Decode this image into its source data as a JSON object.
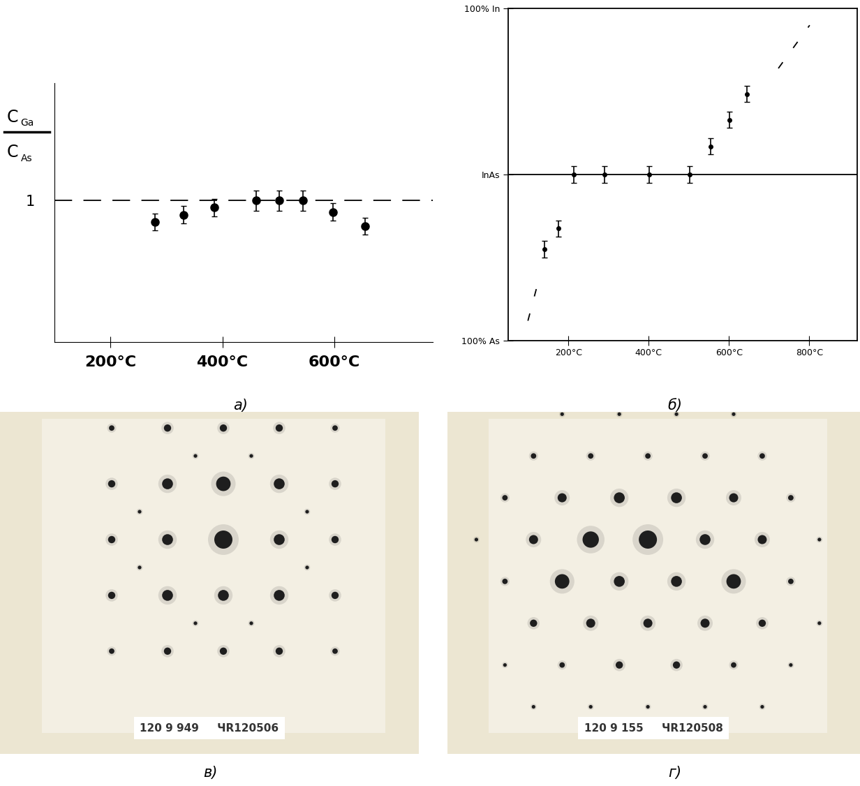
{
  "chart_data": [
    {
      "type": "scatter",
      "caption": "а)",
      "ylabel_numerator": "CGa",
      "ylabel_denominator": "CAs",
      "x": [
        280,
        331,
        386,
        460,
        502,
        544,
        597,
        654
      ],
      "values": [
        0.85,
        0.9,
        0.95,
        1.0,
        1.0,
        1.0,
        0.92,
        0.82
      ],
      "errors": [
        0.06,
        0.06,
        0.06,
        0.07,
        0.07,
        0.07,
        0.06,
        0.06
      ],
      "reference_line": 1,
      "reference_line_style": "dashed",
      "xlim": [
        100,
        775
      ],
      "ylim": [
        0,
        1.83
      ],
      "xticks": [
        {
          "value": 200,
          "label": "200°C"
        },
        {
          "value": 400,
          "label": "400°C"
        },
        {
          "value": 600,
          "label": "600°C"
        }
      ],
      "yticks": [
        1
      ],
      "color": "#000000",
      "marker": "o"
    },
    {
      "type": "scatter",
      "caption": "б)",
      "x": [
        140,
        175,
        213,
        290,
        401,
        502,
        554,
        601,
        645
      ],
      "values": [
        27.4,
        33.7,
        50,
        50,
        50,
        50,
        58.5,
        66.5,
        74.3
      ],
      "errors": [
        2.5,
        2.5,
        2.5,
        2.5,
        2.5,
        2.5,
        2.5,
        2.5,
        2.5
      ],
      "reference_line": 50,
      "reference_line_style": "solid",
      "trend_lines": [
        {
          "x": [
            99,
            128
          ],
          "values": [
            5.9,
            19.2
          ]
        },
        {
          "x": [
            723,
            801
          ],
          "values": [
            82,
            95
          ]
        }
      ],
      "line_style": "dashed",
      "xlim": [
        50,
        920
      ],
      "ylim": [
        0,
        100
      ],
      "xticks": [
        {
          "value": 200,
          "label": "200°C"
        },
        {
          "value": 400,
          "label": "400°C"
        },
        {
          "value": 600,
          "label": "600°C"
        },
        {
          "value": 800,
          "label": "800°C"
        }
      ],
      "yticks": [
        {
          "value": 0,
          "label": "100% As"
        },
        {
          "value": 50,
          "label": "InAs"
        },
        {
          "value": 100,
          "label": "100% In"
        }
      ],
      "color": "#000000",
      "marker": "o"
    },
    {
      "type": "diffraction_pattern",
      "caption": "в)",
      "label_text": [
        "120 9 949",
        "ЧR120506"
      ],
      "xlim": [
        -4,
        3.5
      ],
      "ylim": [
        -3.84,
        2.29
      ],
      "tick_labels": false,
      "spots": {
        "x": [
          -2,
          -1,
          0,
          1,
          2,
          -2,
          -1,
          0,
          1,
          2,
          -2,
          -1,
          0,
          1,
          2,
          -2,
          -1,
          0,
          1,
          2,
          -2,
          -1,
          0,
          1,
          2,
          -0.5,
          0.5,
          -0.5,
          0.5,
          -1.5,
          1.5,
          -1.5,
          1.5
        ],
        "y": [
          2,
          2,
          2,
          2,
          2,
          1,
          1,
          1,
          1,
          1,
          0,
          0,
          0,
          0,
          0,
          -1,
          -1,
          -1,
          -1,
          -1,
          -2,
          -2,
          -2,
          -2,
          -2,
          1.5,
          1.5,
          -1.5,
          -1.5,
          0.5,
          0.5,
          -0.5,
          -0.5
        ],
        "intensity": [
          1.5,
          2,
          2,
          2,
          1.5,
          2,
          3,
          4,
          3,
          2,
          2,
          3,
          5,
          3,
          2,
          2,
          3,
          3,
          3,
          2,
          1.5,
          2,
          2,
          2,
          1.5,
          1,
          1,
          1,
          1,
          1,
          1,
          1,
          1
        ]
      },
      "color": "#1e1e1e"
    },
    {
      "type": "diffraction_pattern",
      "caption": "г)",
      "label_text": [
        "120 9 155",
        "ЧR120508"
      ],
      "xlim": [
        -3.51,
        3.71
      ],
      "ylim": [
        -3.74,
        2.23
      ],
      "tick_labels": false,
      "spots": {
        "x": [
          -1.5,
          -0.5,
          0.5,
          1.5,
          -2,
          -1,
          0,
          1,
          2,
          -2.5,
          -1.5,
          -0.5,
          0.5,
          1.5,
          2.5,
          -3,
          -2,
          -1,
          0,
          1,
          2,
          3,
          -2.5,
          -1.5,
          -0.5,
          0.5,
          1.5,
          2.5,
          -2,
          -1,
          0,
          1,
          2,
          3,
          -2.5,
          -1.5,
          -0.5,
          0.5,
          1.5,
          2.5,
          -2,
          -1,
          0,
          1,
          2
        ],
        "y": [
          2.19,
          2.19,
          2.19,
          2.19,
          1.46,
          1.46,
          1.46,
          1.46,
          1.46,
          0.73,
          0.73,
          0.73,
          0.73,
          0.73,
          0.73,
          0,
          0,
          0,
          0,
          0,
          0,
          0,
          -0.73,
          -0.73,
          -0.73,
          -0.73,
          -0.73,
          -0.73,
          -1.46,
          -1.46,
          -1.46,
          -1.46,
          -1.46,
          -1.46,
          -2.19,
          -2.19,
          -2.19,
          -2.19,
          -2.19,
          -2.19,
          -2.92,
          -2.92,
          -2.92,
          -2.92,
          -2.92
        ],
        "intensity": [
          1,
          1,
          1,
          1,
          1.5,
          1.5,
          1.5,
          1.5,
          1.5,
          1.5,
          2.5,
          3,
          3,
          2.5,
          1.5,
          1,
          2.5,
          4.5,
          5,
          3,
          2.5,
          1,
          1.5,
          4,
          3,
          3,
          4,
          1.5,
          2,
          2.5,
          2.5,
          2.5,
          2,
          1,
          1,
          1.5,
          2,
          2,
          1.5,
          1,
          1,
          1,
          1,
          1,
          1
        ]
      },
      "color": "#1e1e1e"
    }
  ]
}
